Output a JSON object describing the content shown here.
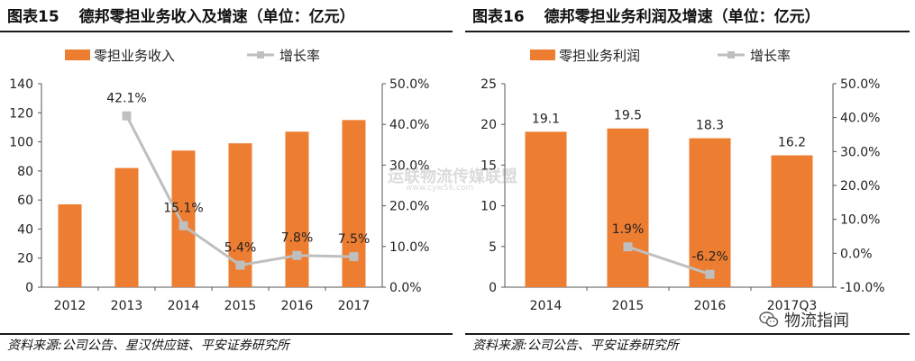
{
  "left": {
    "fig_label": "图表15",
    "title": "德邦零担业务收入及增速（单位：亿元）",
    "source": "资料来源:公司公告、星汉供应链、平安证券研究所"
  },
  "right": {
    "fig_label": "图表16",
    "title": "德邦零担业务利润及增速（单位：亿元）",
    "source": "资料来源:公司公告、平安证券研究所"
  },
  "watermark": {
    "center_text": "运联物流传媒联盟",
    "center_url": "www.cyw56.com",
    "logo_text": "物流指闻",
    "logo_icon": "wechat-icon"
  },
  "colors": {
    "bar": "#ED7D31",
    "line": "#BFBFBF",
    "axis": "#555555"
  },
  "chart_data": [
    {
      "type": "bar",
      "categories": [
        "2012",
        "2013",
        "2014",
        "2015",
        "2016",
        "2017"
      ],
      "series": [
        {
          "name": "零担业务收入",
          "kind": "bar",
          "axis": "left",
          "values": [
            57,
            82,
            94,
            99,
            107,
            115
          ],
          "labels": [
            "",
            "",
            "",
            "",
            "",
            ""
          ]
        },
        {
          "name": "增长率",
          "kind": "line",
          "axis": "right",
          "values": [
            null,
            42.1,
            15.1,
            5.4,
            7.8,
            7.5
          ],
          "labels": [
            "",
            "42.1%",
            "15.1%",
            "5.4%",
            "7.8%",
            "7.5%"
          ]
        }
      ],
      "ylim": [
        0,
        140
      ],
      "yticks": [
        "0",
        "20",
        "40",
        "60",
        "80",
        "100",
        "120",
        "140"
      ],
      "y2lim": [
        0,
        50
      ],
      "y2ticks": [
        "0.0%",
        "10.0%",
        "20.0%",
        "30.0%",
        "40.0%",
        "50.0%"
      ],
      "legend": "top"
    },
    {
      "type": "bar",
      "categories": [
        "2014",
        "2015",
        "2016",
        "2017Q3"
      ],
      "series": [
        {
          "name": "零担业务利润",
          "kind": "bar",
          "axis": "left",
          "values": [
            19.1,
            19.5,
            18.3,
            16.2
          ],
          "labels": [
            "19.1",
            "19.5",
            "18.3",
            "16.2"
          ]
        },
        {
          "name": "增长率",
          "kind": "line",
          "axis": "right",
          "values": [
            null,
            1.9,
            -6.2,
            null
          ],
          "labels": [
            "",
            "1.9%",
            "-6.2%",
            ""
          ]
        }
      ],
      "ylim": [
        0,
        25
      ],
      "yticks": [
        "0",
        "5",
        "10",
        "15",
        "20",
        "25"
      ],
      "y2lim": [
        -10,
        50
      ],
      "y2ticks": [
        "-10.0%",
        "0.0%",
        "10.0%",
        "20.0%",
        "30.0%",
        "40.0%",
        "50.0%"
      ],
      "legend": "top"
    }
  ]
}
